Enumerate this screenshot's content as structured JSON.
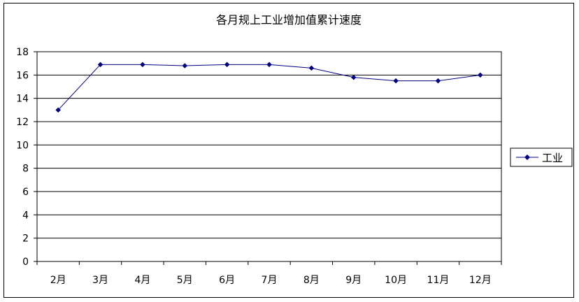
{
  "chart_data": {
    "type": "line",
    "title": "各月规上工业增加值累计速度",
    "xlabel": "",
    "ylabel": "",
    "categories": [
      "2月",
      "3月",
      "4月",
      "5月",
      "6月",
      "7月",
      "8月",
      "9月",
      "10月",
      "11月",
      "12月"
    ],
    "series": [
      {
        "name": "工业",
        "values": [
          13.0,
          16.9,
          16.9,
          16.8,
          16.9,
          16.9,
          16.6,
          15.8,
          15.5,
          15.5,
          16.0
        ],
        "color": "#000080"
      }
    ],
    "ylim": [
      0,
      18
    ],
    "yticks": [
      "0",
      "2",
      "4",
      "6",
      "8",
      "10",
      "12",
      "14",
      "16",
      "18"
    ],
    "grid": true,
    "plot_background": "#ffffff",
    "legend": "right"
  }
}
